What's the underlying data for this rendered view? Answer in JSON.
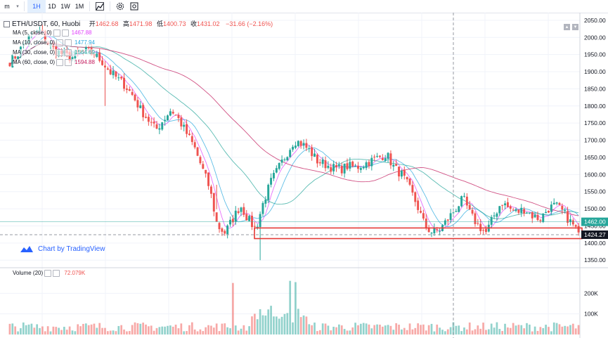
{
  "toolbar": {
    "items": [
      "m",
      "1H",
      "1D",
      "1W",
      "1M"
    ],
    "active": "1H"
  },
  "legend": {
    "symbol": "ETH/USDT, 60, Huobi",
    "open_label": "开",
    "open": "1462.68",
    "high_label": "高",
    "high": "1471.98",
    "low_label": "低",
    "low": "1400.73",
    "close_label": "收",
    "close": "1431.02",
    "change": "−31.66 (−2.16%)",
    "change_color": "#ef5350"
  },
  "ma_legend": [
    {
      "label": "MA (5, close, 0)",
      "value": "1467.88",
      "color": "#e040fb"
    },
    {
      "label": "MA (10, close, 0)",
      "value": "1477.94",
      "color": "#26a7de"
    },
    {
      "label": "MA (30, close, 0)",
      "value": "1564.69",
      "color": "#26a69a"
    },
    {
      "label": "MA (60, close, 0)",
      "value": "1594.88",
      "color": "#c2185b"
    }
  ],
  "attribution": "Chart by TradingView",
  "volume_legend": {
    "label": "Volume (20)",
    "value": "72.079K"
  },
  "price_axis": {
    "ticks": [
      "2050.00",
      "2000.00",
      "1950.00",
      "1900.00",
      "1850.00",
      "1800.00",
      "1750.00",
      "1700.00",
      "1650.00",
      "1600.00",
      "1550.00",
      "1500.00",
      "1450.00",
      "1400.00",
      "1350.00"
    ],
    "current_price_label": "1462.00",
    "crosshair_label": "1424.27"
  },
  "volume_axis": {
    "ticks": [
      "200K",
      "100K"
    ]
  },
  "colors": {
    "up": "#26a69a",
    "down": "#ef5350",
    "ma5": "#e040fb",
    "ma10": "#26a7de",
    "ma30": "#26a69a",
    "ma60": "#c2185b",
    "box": "#e53935"
  },
  "chart_data": {
    "type": "candlestick",
    "symbol": "ETH/USDT",
    "interval": "60",
    "exchange": "Huobi",
    "ylim": [
      1330,
      2060
    ],
    "close_path": [
      1930,
      1950,
      1990,
      2010,
      2020,
      1980,
      1960,
      1950,
      1940,
      1955,
      1960,
      1950,
      1930,
      1900,
      1880,
      1860,
      1830,
      1790,
      1760,
      1730,
      1760,
      1790,
      1760,
      1720,
      1680,
      1620,
      1560,
      1450,
      1430,
      1470,
      1510,
      1470,
      1440,
      1520,
      1580,
      1620,
      1660,
      1700,
      1690,
      1670,
      1640,
      1630,
      1620,
      1615,
      1625,
      1620,
      1630,
      1640,
      1650,
      1660,
      1620,
      1600,
      1560,
      1510,
      1450,
      1430,
      1440,
      1470,
      1500,
      1530,
      1480,
      1450,
      1430,
      1480,
      1520,
      1500,
      1490,
      1500,
      1480,
      1470,
      1500,
      1510,
      1490,
      1460,
      1431
    ],
    "volume_ylim": [
      0,
      300000
    ],
    "volume_spikes": [
      {
        "at": 0.39,
        "value": 250000
      },
      {
        "at": 0.49,
        "value": 220000
      },
      {
        "at": 0.5,
        "value": 180000
      }
    ],
    "support_box": {
      "top": 1444,
      "bottom": 1413
    }
  }
}
